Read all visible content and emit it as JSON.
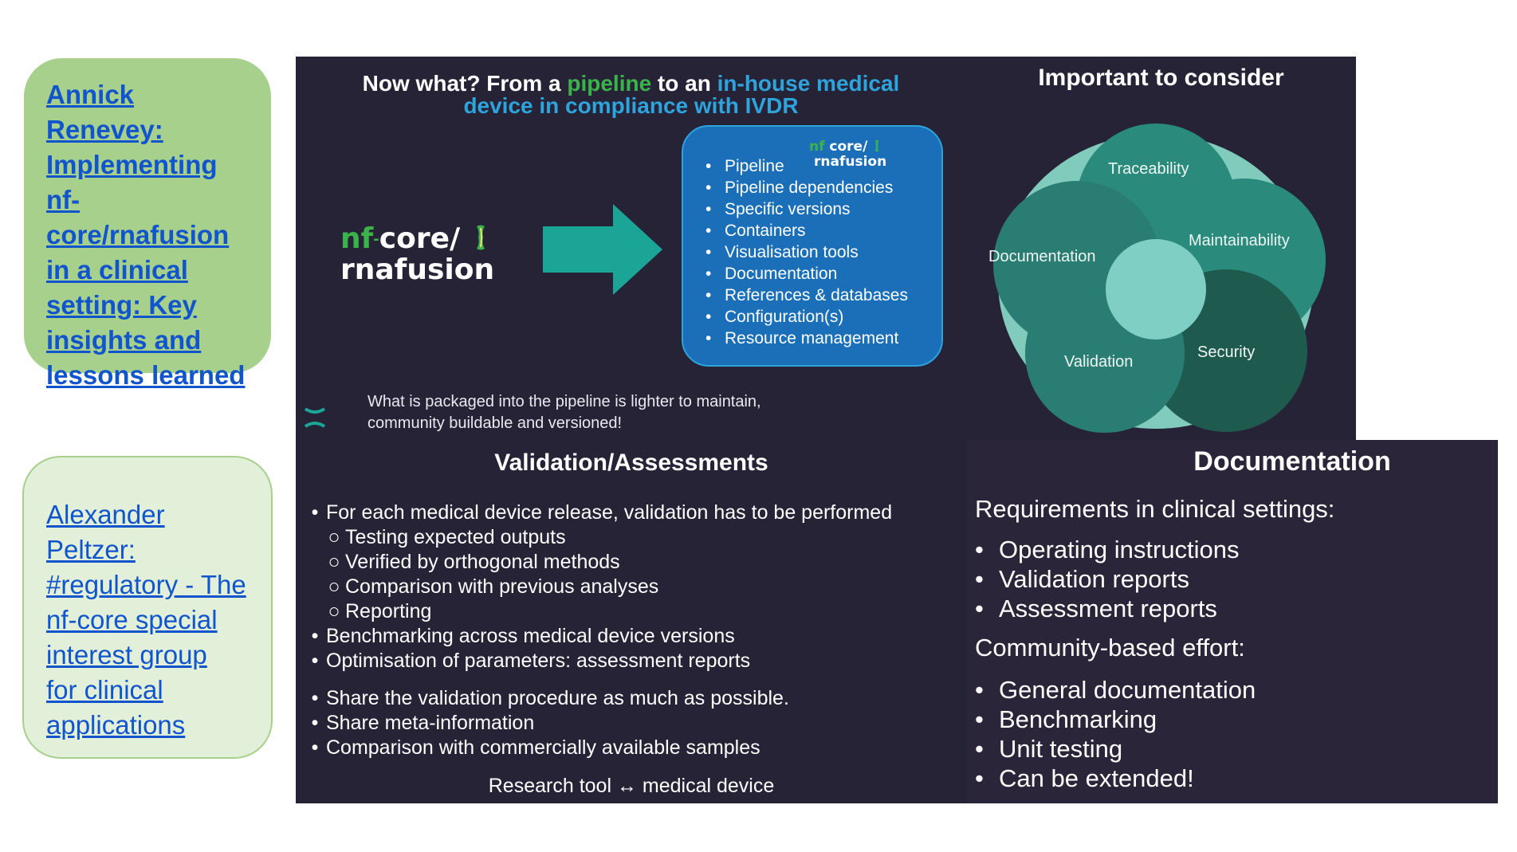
{
  "left_links": {
    "link1": [
      "Annick Renevey:",
      "Implementing",
      "nf-",
      "core/rnafusion",
      "in a clinical",
      "setting: Key",
      "insights and",
      "lessons learned"
    ],
    "link2": [
      "Alexander",
      "Peltzer:",
      "#regulatory - The",
      "nf-core special",
      "interest group",
      "for clinical",
      "applications"
    ]
  },
  "slide1": {
    "title_a": "Now what? From a ",
    "title_b": "pipeline",
    "title_c": " to an ",
    "title_d": "in-house medical",
    "title_e": "device in compliance with IVDR",
    "logo_nf": "nf",
    "logo_dash": "-",
    "logo_core": "core/",
    "logo_name": "rnafusion",
    "box_items": [
      "Pipeline",
      "Pipeline dependencies",
      "Specific versions",
      "Containers",
      "Visualisation tools",
      "Documentation",
      "References & databases",
      "Configuration(s)",
      "Resource management"
    ],
    "box_logo_nf": "nf",
    "box_logo_core": "core/",
    "box_logo_name": "rnafusion",
    "note_line1": "What is packaged into the pipeline is lighter to maintain,",
    "note_line2": "community buildable and versioned!"
  },
  "slide2": {
    "title": "Important to consider",
    "labels": {
      "traceability": "Traceability",
      "maintainability": "Maintainability",
      "documentation": "Documentation",
      "security": "Security",
      "validation": "Validation"
    }
  },
  "slide3": {
    "title": "Validation/Assessments",
    "item1": "For each medical device release, validation has to be performed",
    "subitems": [
      "Testing expected outputs",
      "Verified by orthogonal methods",
      "Comparison with previous analyses",
      "Reporting"
    ],
    "items_a": [
      "Benchmarking across medical device versions",
      "Optimisation of parameters: assessment reports"
    ],
    "items_b": [
      "Share the validation procedure as much as possible.",
      "Share meta-information",
      "Comparison with commercially available samples"
    ],
    "footer": "Research tool ↔ medical device"
  },
  "slide4": {
    "title": "Documentation",
    "heading1": "Requirements in clinical settings:",
    "list1": [
      "Operating instructions",
      "Validation reports",
      "Assessment reports"
    ],
    "heading2": "Community-based effort:",
    "list2": [
      "General documentation",
      "Benchmarking",
      "Unit testing",
      "Can be extended!"
    ]
  },
  "colors": {
    "panel": "#262337",
    "green_box": "#a8d08d",
    "light_green_box": "#e2efd9",
    "teal": "#1aa597",
    "blue_box": "#1a6fb8"
  }
}
